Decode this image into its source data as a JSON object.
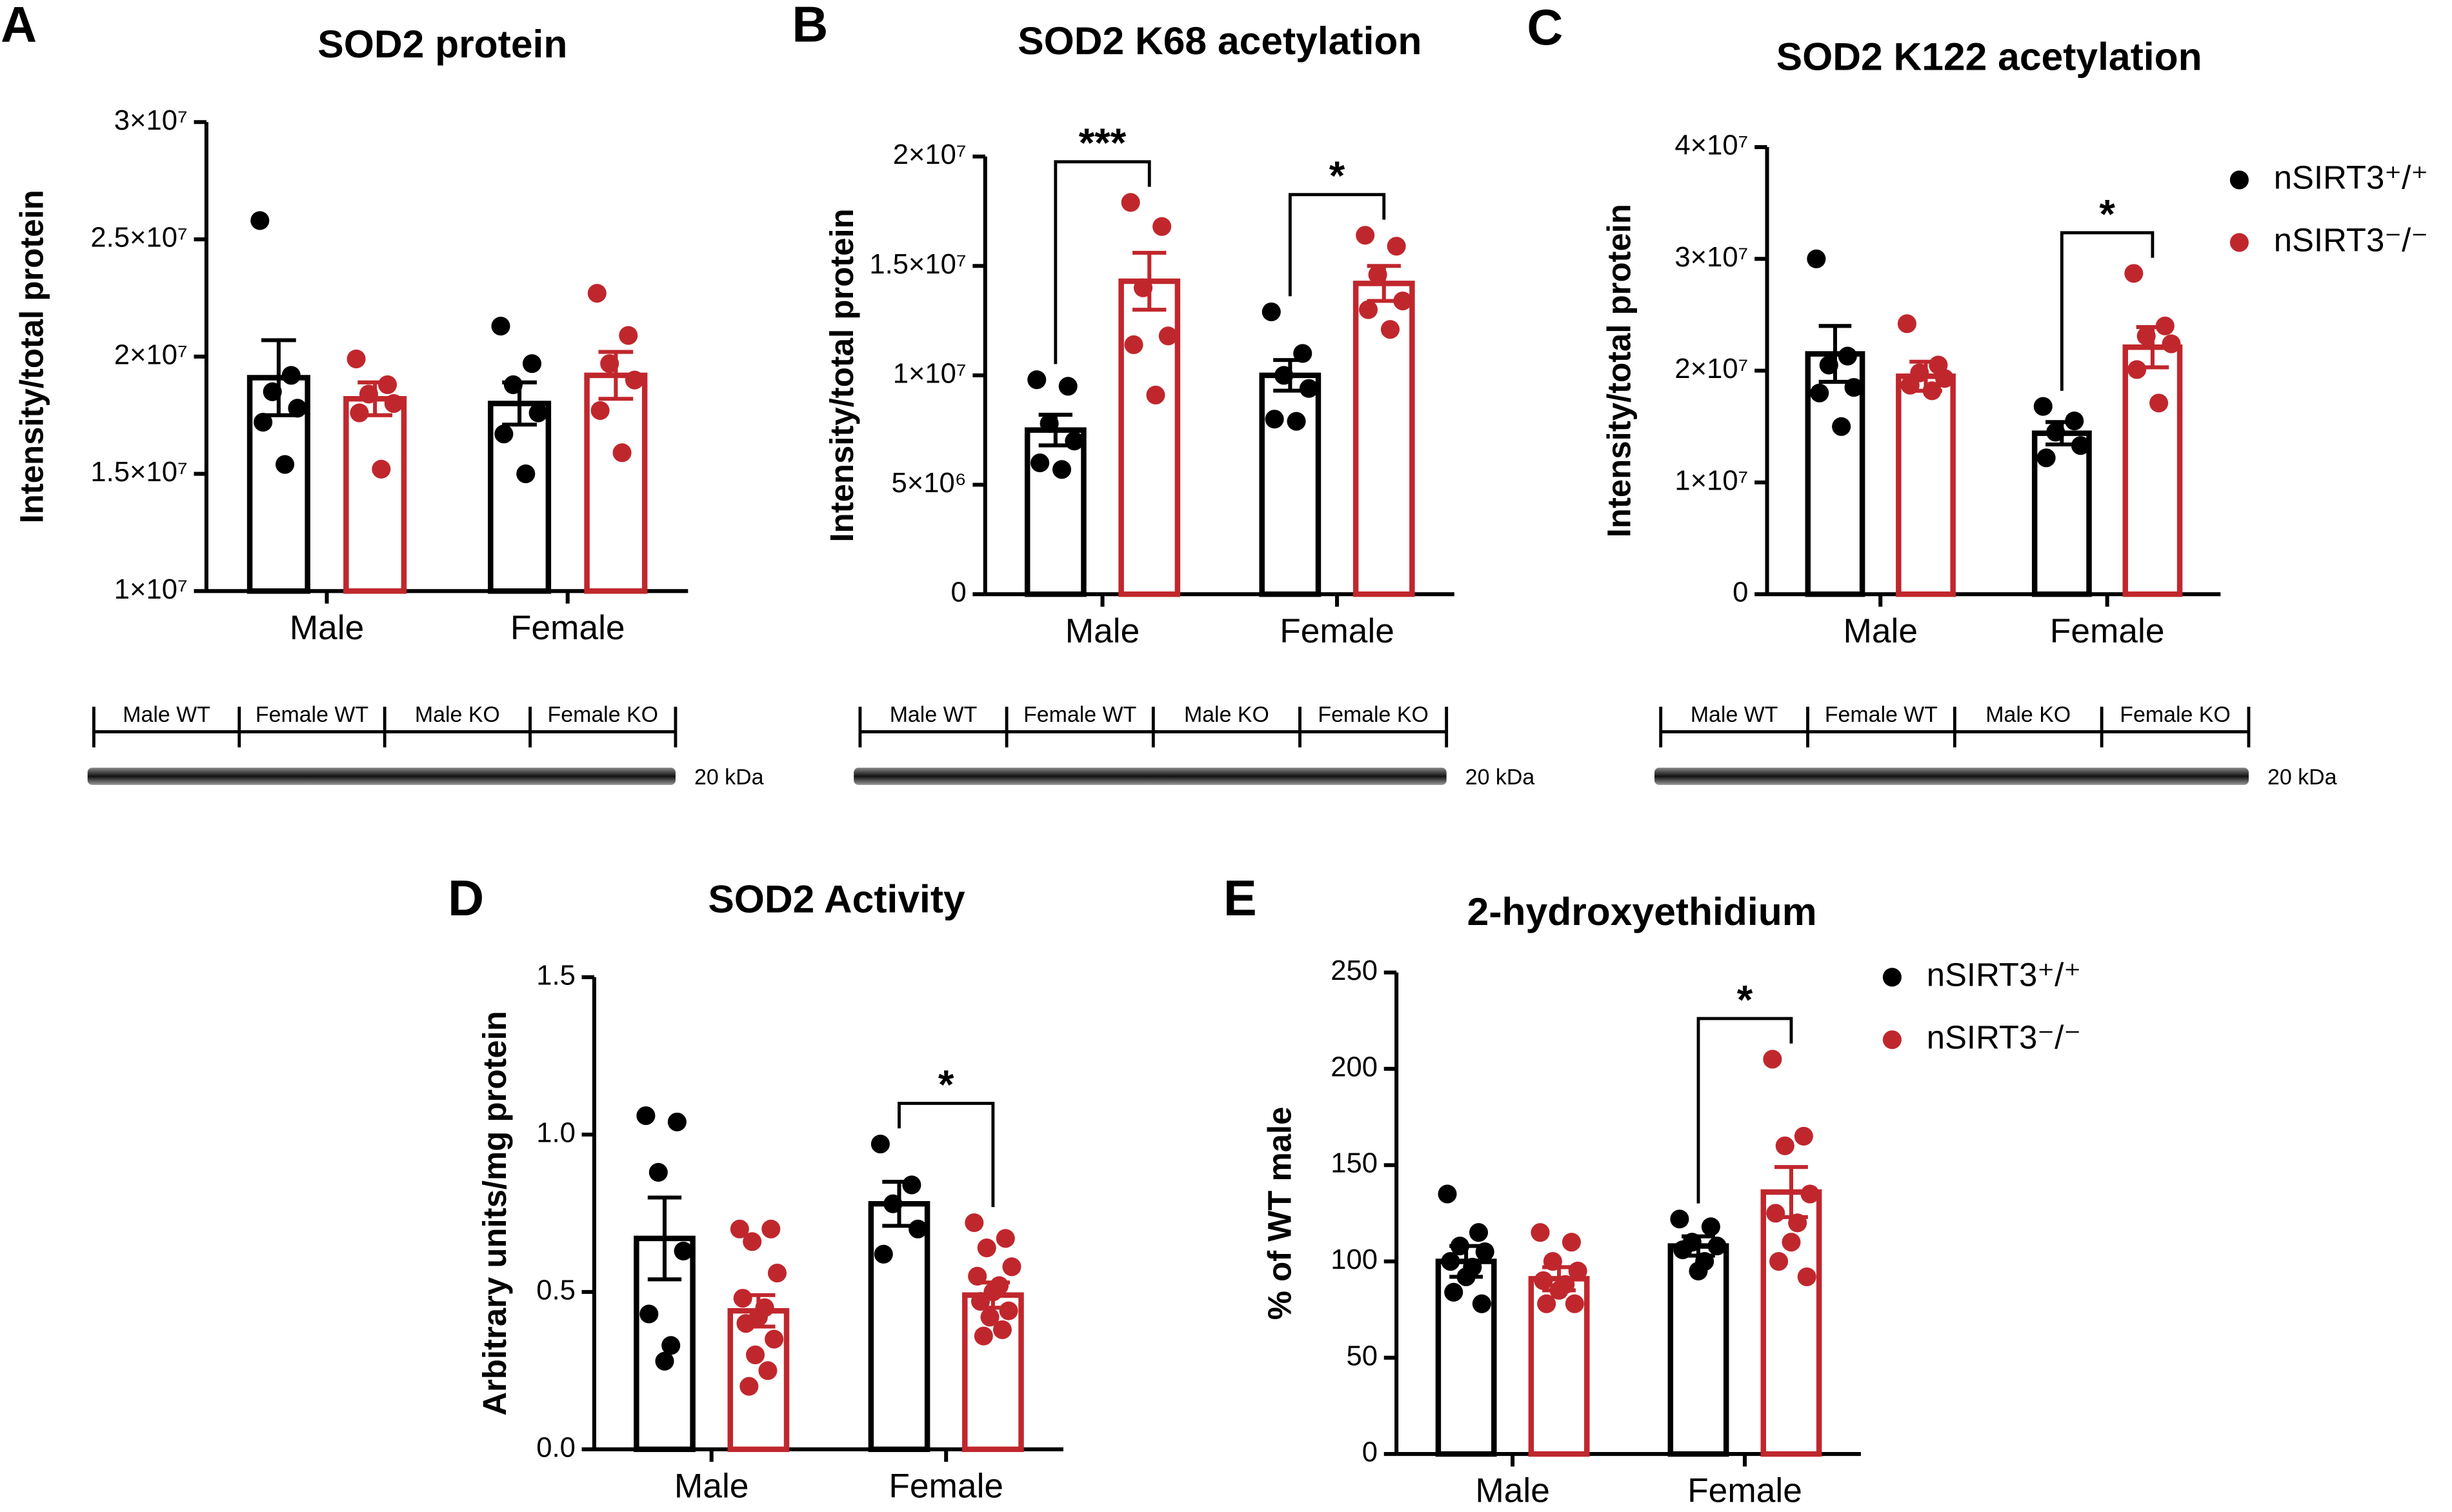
{
  "chart_data": [
    {
      "type": "bar",
      "panel": "A",
      "title": "SOD2 protein",
      "ylabel": "Intensity/total protein",
      "categories": [
        "Male",
        "Female"
      ],
      "ylim": [
        10000000,
        30000000
      ],
      "yticks": [
        {
          "value": 10000000,
          "label": "1×10⁷"
        },
        {
          "value": 15000000,
          "label": "1.5×10⁷"
        },
        {
          "value": 20000000,
          "label": "2×10⁷"
        },
        {
          "value": 25000000,
          "label": "2.5×10⁷"
        },
        {
          "value": 30000000,
          "label": "3×10⁷"
        }
      ],
      "series": [
        {
          "color": "#000000",
          "values": [
            19100000,
            18000000
          ],
          "errors": [
            1600000,
            900000
          ],
          "points": [
            [
              25800000,
              19200000,
              18500000,
              17800000,
              17200000,
              15400000
            ],
            [
              21300000,
              19700000,
              18800000,
              17600000,
              16700000,
              15000000
            ]
          ]
        },
        {
          "color": "#c0272d",
          "values": [
            18200000,
            19200000
          ],
          "errors": [
            700000,
            1000000
          ],
          "points": [
            [
              19900000,
              18800000,
              18400000,
              18000000,
              17600000,
              15200000
            ],
            [
              22700000,
              20900000,
              19700000,
              19000000,
              17700000,
              15900000
            ]
          ]
        }
      ],
      "annotations": [],
      "blot": {
        "lanes": [
          "Male WT",
          "Female WT",
          "Male KO",
          "Female KO"
        ],
        "marker": "20 kDa"
      }
    },
    {
      "type": "bar",
      "panel": "B",
      "title": "SOD2 K68 acetylation",
      "ylabel": "Intensity/total protein",
      "categories": [
        "Male",
        "Female"
      ],
      "ylim": [
        0,
        20000000
      ],
      "yticks": [
        0,
        {
          "value": 5000000,
          "label": "5×10⁶"
        },
        {
          "value": 10000000,
          "label": "1×10⁷"
        },
        {
          "value": 15000000,
          "label": "1.5×10⁷"
        },
        {
          "value": 20000000,
          "label": "2×10⁷"
        }
      ],
      "series": [
        {
          "color": "#000000",
          "values": [
            7500000,
            10000000
          ],
          "errors": [
            700000,
            700000
          ],
          "points": [
            [
              9800000,
              9500000,
              7800000,
              7000000,
              6000000,
              5700000
            ],
            [
              12900000,
              11000000,
              10000000,
              9400000,
              8000000,
              7900000
            ]
          ]
        },
        {
          "color": "#c0272d",
          "values": [
            14300000,
            14200000
          ],
          "errors": [
            1300000,
            800000
          ],
          "points": [
            [
              17900000,
              16800000,
              14000000,
              11800000,
              11400000,
              9100000
            ],
            [
              16400000,
              15900000,
              14600000,
              13400000,
              13000000,
              12100000
            ]
          ]
        }
      ],
      "annotations": [
        {
          "text": "***",
          "category": 0
        },
        {
          "text": "*",
          "category": 1
        }
      ],
      "blot": {
        "lanes": [
          "Male WT",
          "Female WT",
          "Male KO",
          "Female KO"
        ],
        "marker": "20 kDa"
      }
    },
    {
      "type": "bar",
      "panel": "C",
      "title": "SOD2 K122 acetylation",
      "ylabel": "Intensity/total protein",
      "categories": [
        "Male",
        "Female"
      ],
      "ylim": [
        0,
        40000000
      ],
      "yticks": [
        0,
        {
          "value": 10000000,
          "label": "1×10⁷"
        },
        {
          "value": 20000000,
          "label": "2×10⁷"
        },
        {
          "value": 30000000,
          "label": "3×10⁷"
        },
        {
          "value": 40000000,
          "label": "4×10⁷"
        }
      ],
      "series": [
        {
          "name": "nSIRT3⁺/⁺",
          "color": "#000000",
          "values": [
            21500000,
            14400000
          ],
          "errors": [
            2500000,
            1000000
          ],
          "points": [
            [
              30000000,
              21300000,
              20500000,
              18500000,
              18000000,
              15000000
            ],
            [
              16800000,
              15500000,
              14500000,
              13300000,
              12200000
            ]
          ]
        },
        {
          "name": "nSIRT3⁻/⁻",
          "color": "#c0272d",
          "values": [
            19500000,
            22100000
          ],
          "errors": [
            1300000,
            1800000
          ],
          "points": [
            [
              24200000,
              20500000,
              19800000,
              19300000,
              18700000,
              18200000
            ],
            [
              28700000,
              24000000,
              23100000,
              22400000,
              20100000,
              17100000
            ]
          ]
        }
      ],
      "legend": "right",
      "annotations": [
        {
          "text": "*",
          "category": 1
        }
      ],
      "blot": {
        "lanes": [
          "Male WT",
          "Female WT",
          "Male KO",
          "Female KO"
        ],
        "marker": "20 kDa"
      }
    },
    {
      "type": "bar",
      "panel": "D",
      "title": "SOD2 Activity",
      "ylabel": "Arbitrary units/mg protein",
      "categories": [
        "Male",
        "Female"
      ],
      "ylim": [
        0,
        1.5
      ],
      "yticks": [
        {
          "value": 0,
          "label": "0.0"
        },
        0.5,
        {
          "value": 1,
          "label": "1.0"
        },
        1.5
      ],
      "series": [
        {
          "color": "#000000",
          "values": [
            0.67,
            0.78
          ],
          "errors": [
            0.13,
            0.07
          ],
          "points": [
            [
              1.06,
              1.04,
              0.88,
              0.63,
              0.43,
              0.33,
              0.28
            ],
            [
              0.97,
              0.84,
              0.78,
              0.7,
              0.62
            ]
          ]
        },
        {
          "color": "#c0272d",
          "values": [
            0.44,
            0.49
          ],
          "errors": [
            0.05,
            0.04
          ],
          "points": [
            [
              0.7,
              0.7,
              0.66,
              0.56,
              0.48,
              0.45,
              0.42,
              0.4,
              0.35,
              0.3,
              0.25,
              0.2
            ],
            [
              0.72,
              0.67,
              0.64,
              0.58,
              0.55,
              0.52,
              0.5,
              0.47,
              0.44,
              0.42,
              0.38,
              0.36
            ]
          ]
        }
      ],
      "annotations": [
        {
          "text": "*",
          "category": 1
        }
      ]
    },
    {
      "type": "bar",
      "panel": "E",
      "title": "2-hydroxyethidium",
      "ylabel": "% of WT male",
      "categories": [
        "Male",
        "Female"
      ],
      "ylim": [
        0,
        250
      ],
      "yticks": [
        0,
        50,
        100,
        150,
        200,
        250
      ],
      "series": [
        {
          "name": "nSIRT3⁺/⁺",
          "color": "#000000",
          "values": [
            100,
            108
          ],
          "errors": [
            8,
            5
          ],
          "points": [
            [
              135,
              115,
              108,
              105,
              100,
              97,
              92,
              84,
              78
            ],
            [
              122,
              118,
              110,
              108,
              106,
              100,
              95
            ]
          ]
        },
        {
          "name": "nSIRT3⁻/⁻",
          "color": "#c0272d",
          "values": [
            91,
            136
          ],
          "errors": [
            6,
            13
          ],
          "points": [
            [
              115,
              110,
              100,
              95,
              90,
              88,
              85,
              78,
              78
            ],
            [
              205,
              165,
              160,
              135,
              125,
              120,
              110,
              100,
              92
            ]
          ]
        }
      ],
      "legend": "right",
      "annotations": [
        {
          "text": "*",
          "category": 1
        }
      ]
    }
  ]
}
